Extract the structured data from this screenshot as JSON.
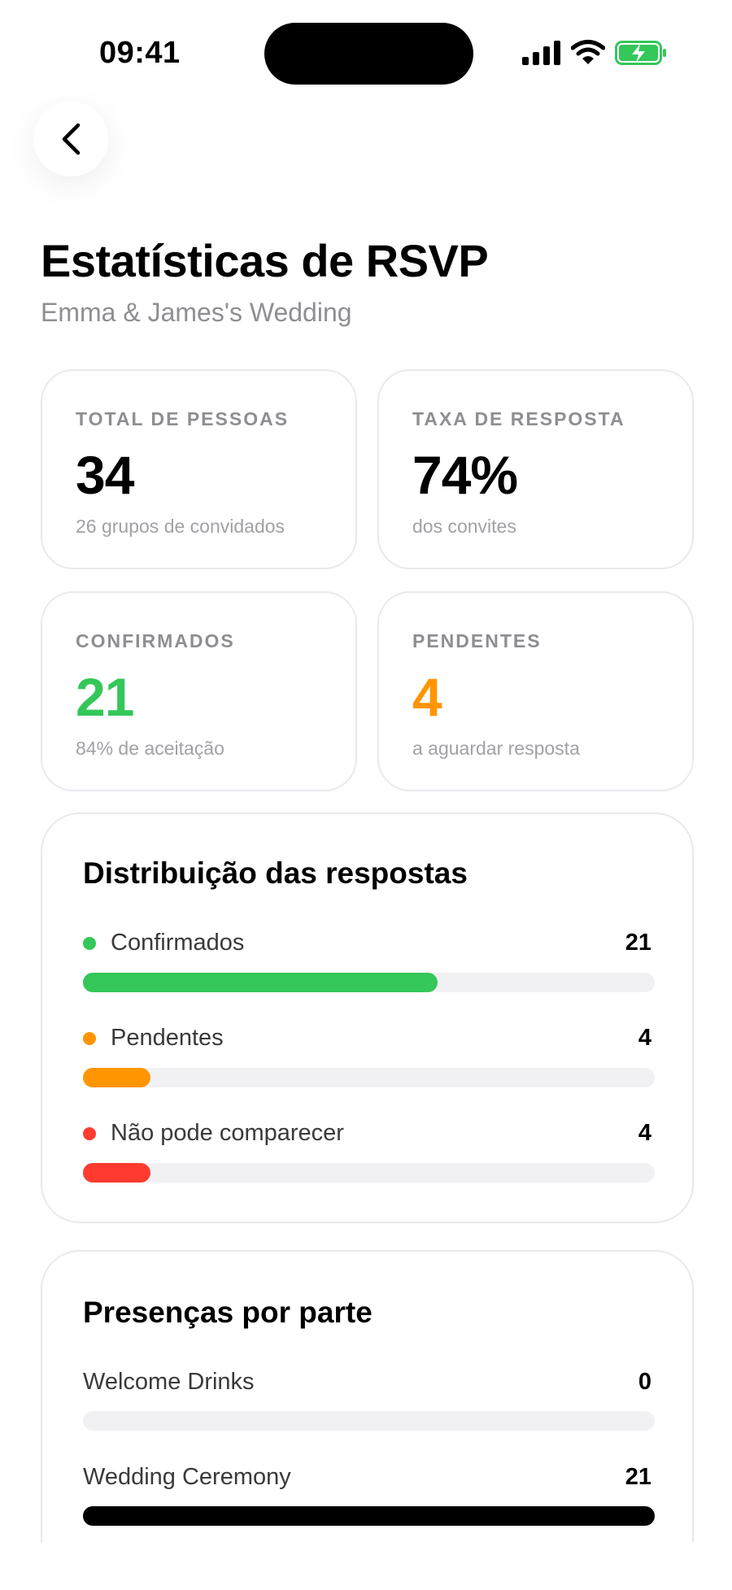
{
  "status_bar": {
    "time": "09:41",
    "icons": [
      "cellular-signal-icon",
      "wifi-icon",
      "battery-charging-icon"
    ],
    "battery_color": "#34c759"
  },
  "nav": {
    "back_icon": "chevron-left-icon"
  },
  "header": {
    "title": "Estatísticas de RSVP",
    "subtitle": "Emma & James's Wedding"
  },
  "stats": {
    "total": {
      "label": "TOTAL DE PESSOAS",
      "value": "34",
      "note": "26 grupos de convidados",
      "color": "#000000"
    },
    "rate": {
      "label": "TAXA DE RESPOSTA",
      "value": "74%",
      "note": "dos convites",
      "color": "#000000"
    },
    "confirmed": {
      "label": "CONFIRMADOS",
      "value": "21",
      "note": "84% de aceitação",
      "color": "#34c759"
    },
    "pending": {
      "label": "PENDENTES",
      "value": "4",
      "note": "a aguardar resposta",
      "color": "#ff9500"
    }
  },
  "distribution": {
    "title": "Distribuição das respostas",
    "rows": [
      {
        "label": "Confirmados",
        "count": "21",
        "fraction": 0.62,
        "color": "#34c759"
      },
      {
        "label": "Pendentes",
        "count": "4",
        "fraction": 0.118,
        "color": "#ff9500"
      },
      {
        "label": "Não pode comparecer",
        "count": "4",
        "fraction": 0.118,
        "color": "#ff3b30"
      }
    ]
  },
  "attendance": {
    "title": "Presenças por parte",
    "rows": [
      {
        "label": "Welcome Drinks",
        "count": "0",
        "fraction": 0.0,
        "color": "#000000"
      },
      {
        "label": "Wedding Ceremony",
        "count": "21",
        "fraction": 1.0,
        "color": "#000000"
      }
    ]
  }
}
